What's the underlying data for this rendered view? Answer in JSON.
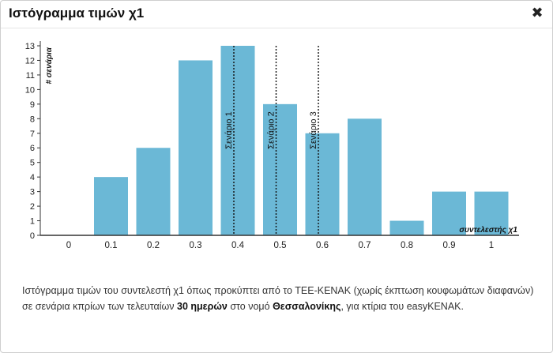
{
  "dialog": {
    "title": "Ιστόγραμμα τιμών χ1",
    "close_icon": "close-icon",
    "close_glyph": "✖"
  },
  "chart_data": {
    "type": "bar",
    "categories": [
      "0",
      "0.1",
      "0.2",
      "0.3",
      "0.4",
      "0.5",
      "0.6",
      "0.7",
      "0.8",
      "0.9",
      "1"
    ],
    "values": [
      0,
      4,
      6,
      12,
      13,
      9,
      7,
      8,
      1,
      3,
      3
    ],
    "yticks": [
      0,
      1,
      2,
      3,
      4,
      5,
      6,
      7,
      8,
      9,
      10,
      11,
      12,
      13
    ],
    "ylim": [
      0,
      13
    ],
    "ylabel": "# σενάρια",
    "xlabel": "συντελεστής χ1",
    "bar_color": "#6bb8d6",
    "reference_lines": [
      {
        "label": "Σενάριο 1",
        "x": 0.4
      },
      {
        "label": "Σενάριο 2",
        "x": 0.5
      },
      {
        "label": "Σενάριο 3",
        "x": 0.6
      }
    ]
  },
  "caption": {
    "part1": "Ιστόγραμμα τιμών του συντελεστή χ1 όπως προκύπτει από το ΤΕΕ-ΚΕΝΑΚ (χωρίς έκπτωση κουφωμάτων διαφανών) σε σενάρια κπρίων των τελευταίων ",
    "bold1": "30 ημερών",
    "part2": " στο νομό ",
    "bold2": "Θεσσαλονίκης",
    "part3": ", για κτίρια του easyKENAK."
  }
}
